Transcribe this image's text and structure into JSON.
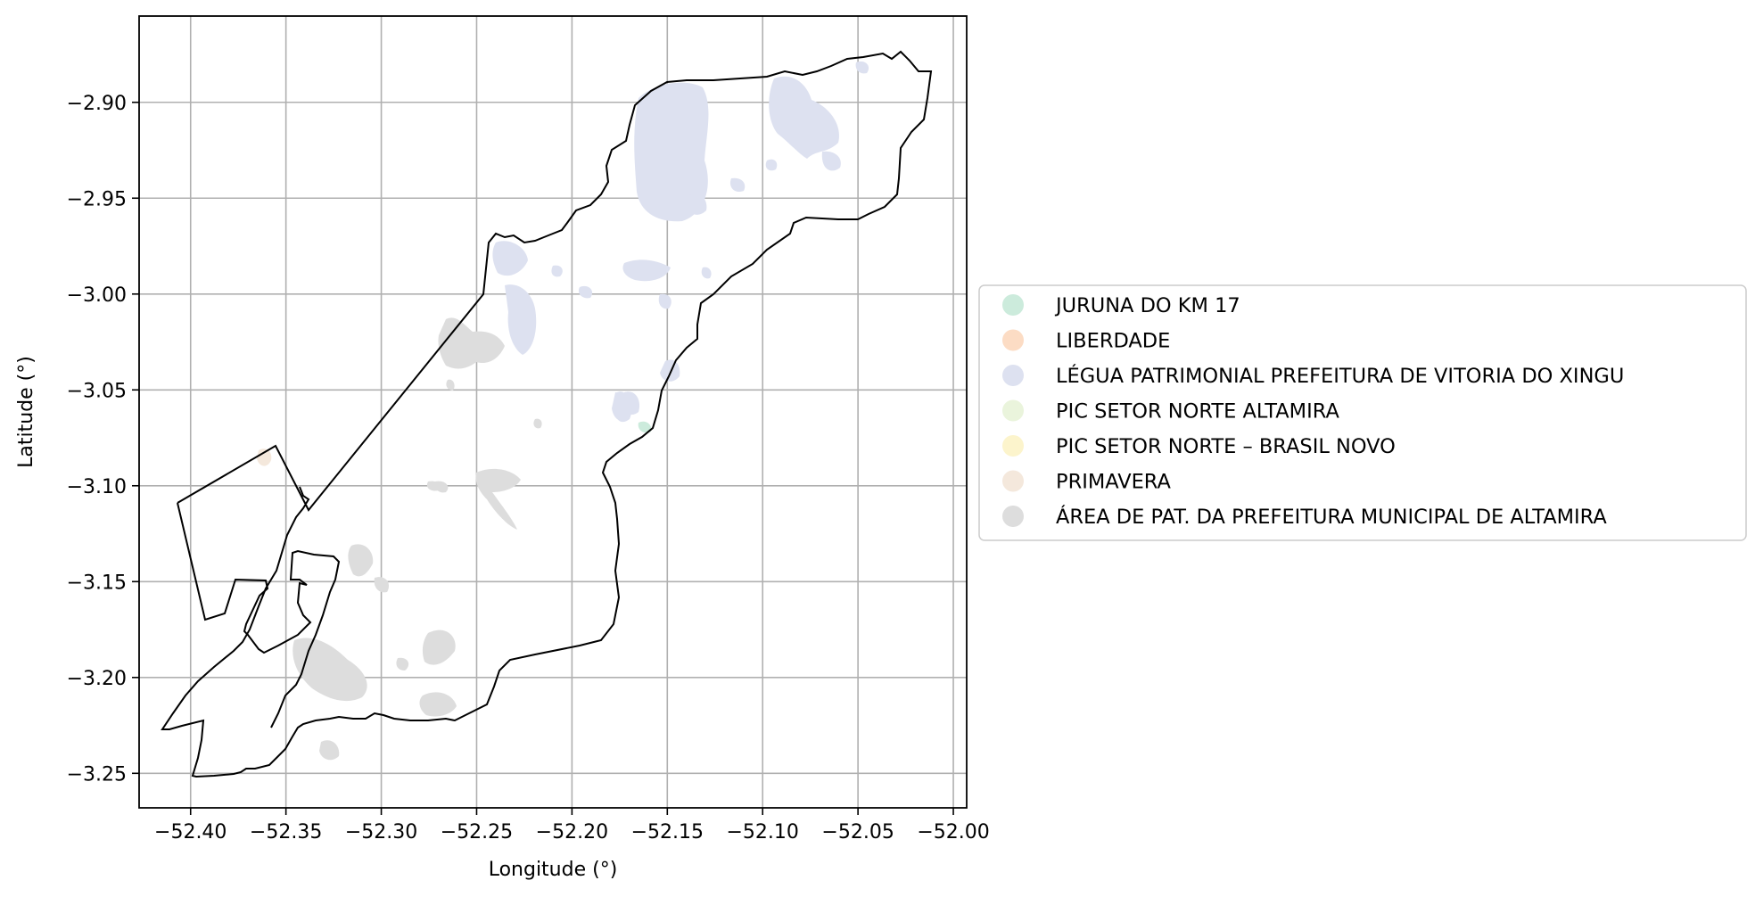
{
  "map": {
    "xlabel": "Longitude (°)",
    "ylabel": "Latitude (°)",
    "x_ticks": [
      "−52.40",
      "−52.35",
      "−52.30",
      "−52.25",
      "−52.20",
      "−52.15",
      "−52.10",
      "−52.05",
      "−52.00"
    ],
    "y_ticks": [
      "−2.90",
      "−2.95",
      "−3.00",
      "−3.05",
      "−3.10",
      "−3.15",
      "−3.20",
      "−3.25"
    ],
    "x_tick_values": [
      -52.4,
      -52.35,
      -52.3,
      -52.25,
      -52.2,
      -52.15,
      -52.1,
      -52.05,
      -52.0
    ],
    "y_tick_values": [
      -2.9,
      -2.95,
      -3.0,
      -3.05,
      -3.1,
      -3.15,
      -3.2,
      -3.25
    ],
    "xlim": [
      -52.427,
      -51.993
    ],
    "ylim": [
      -3.268,
      -2.855
    ],
    "grid": true,
    "legend_placement": "right, outside plot area",
    "boundary_color": "#000000"
  },
  "legend": {
    "items": [
      {
        "label": "JURUNA DO KM 17",
        "color": "#ccebdc"
      },
      {
        "label": "LIBERDADE",
        "color": "#fcdcc4"
      },
      {
        "label": "LÉGUA PATRIMONIAL PREFEITURA DE VITORIA DO XINGU",
        "color": "#dde1f0"
      },
      {
        "label": "PIC SETOR NORTE ALTAMIRA",
        "color": "#eaf4dc"
      },
      {
        "label": "PIC SETOR NORTE – BRASIL NOVO",
        "color": "#fcf4cc"
      },
      {
        "label": "PRIMAVERA",
        "color": "#f4e8dc"
      },
      {
        "label": "ÁREA DE PAT. DA PREFEITURA MUNICIPAL DE ALTAMIRA",
        "color": "#dddddd"
      }
    ]
  }
}
